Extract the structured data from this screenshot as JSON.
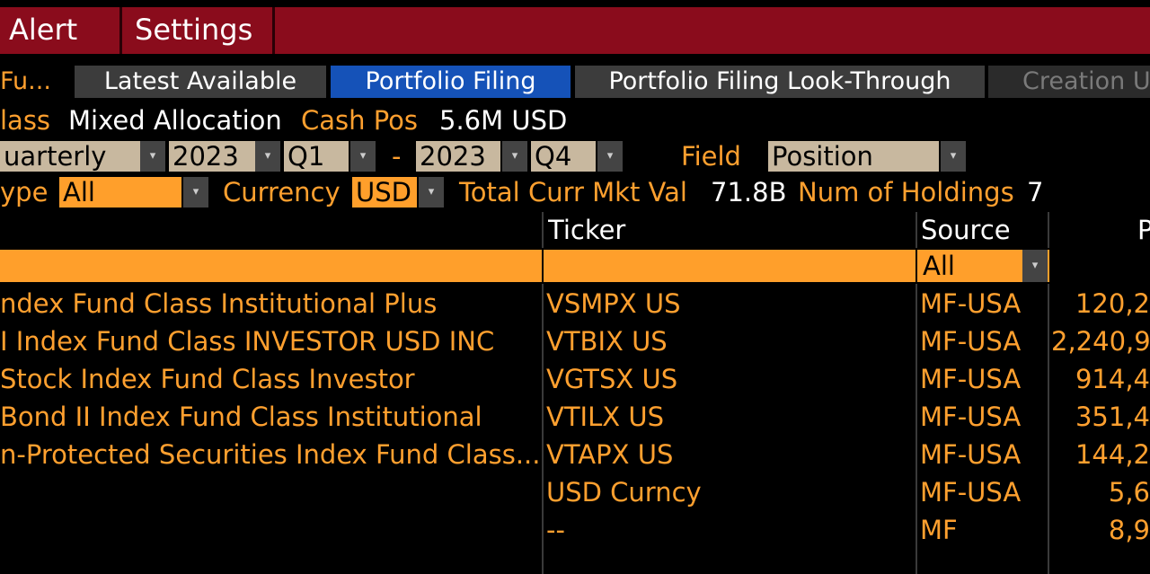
{
  "menu": {
    "alert": "Alert",
    "settings": "Settings"
  },
  "fund_label": "Fu...",
  "tabs": [
    {
      "label": "Latest Available"
    },
    {
      "label": "Portfolio Filing"
    },
    {
      "label": "Portfolio Filing Look-Through"
    },
    {
      "label": "Creation Ur"
    }
  ],
  "info": {
    "class_label": "lass",
    "class_value": "Mixed Allocation",
    "cash_label": "Cash Pos",
    "cash_value": "5.6M USD"
  },
  "filters": {
    "freq_value": "uarterly",
    "start_year": "2023",
    "start_q": "Q1",
    "dash": "-",
    "end_year": "2023",
    "end_q": "Q4",
    "field_label": "Field",
    "field_value": "Position",
    "type_label": "ype",
    "type_value": "All",
    "currency_label": "Currency",
    "currency_value": "USD",
    "total_label": "Total Curr Mkt Val",
    "total_value": "71.8B",
    "num_label": "Num of Holdings",
    "num_value": "7"
  },
  "table": {
    "headers": {
      "ticker": "Ticker",
      "source": "Source",
      "position": "P"
    },
    "source_filter": "All",
    "rows": [
      {
        "name": "ndex Fund Class Institutional Plus",
        "ticker": "VSMPX US",
        "source": "MF-USA",
        "position": "120,2"
      },
      {
        "name": "I Index Fund Class INVESTOR USD INC",
        "ticker": "VTBIX US",
        "source": "MF-USA",
        "position": "2,240,9"
      },
      {
        "name": "Stock Index Fund Class Investor",
        "ticker": "VGTSX US",
        "source": "MF-USA",
        "position": "914,4"
      },
      {
        "name": "Bond II Index Fund Class Institutional",
        "ticker": "VTILX US",
        "source": "MF-USA",
        "position": "351,4"
      },
      {
        "name": "n-Protected Securities Index Fund Class...",
        "ticker": "VTAPX US",
        "source": "MF-USA",
        "position": "144,2"
      },
      {
        "name": "",
        "ticker": "USD Curncy",
        "source": "MF-USA",
        "position": "5,6"
      },
      {
        "name": "",
        "ticker": "--",
        "source": "MF",
        "position": "8,9"
      }
    ]
  },
  "icons": {
    "dropdown": "▾"
  },
  "colors": {
    "menu_bar": "#8a0c1c",
    "accent_orange": "#ffa02f",
    "active_tab": "#1552b8"
  }
}
